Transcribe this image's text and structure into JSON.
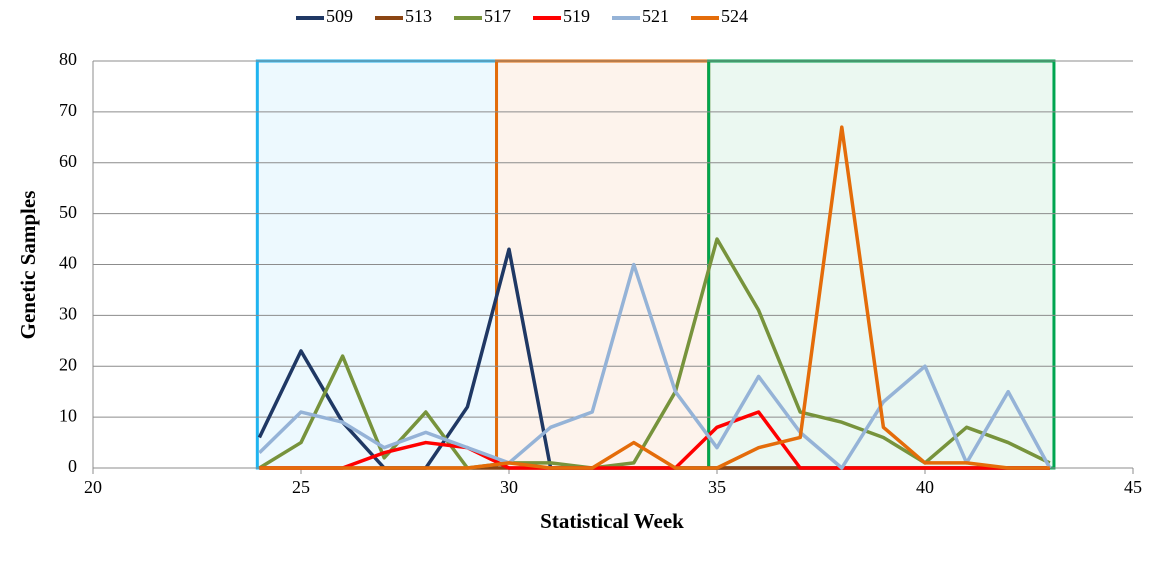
{
  "chart_data": {
    "type": "line",
    "x_label": "Statistical Week",
    "y_label": "Genetic Samples",
    "x": [
      24,
      25,
      26,
      27,
      28,
      29,
      30,
      31,
      32,
      33,
      34,
      35,
      36,
      37,
      38,
      39,
      40,
      41,
      42,
      43
    ],
    "series": [
      {
        "name": "509",
        "color": "#1f3864",
        "values": [
          6,
          23,
          9,
          0,
          0,
          12,
          43,
          0,
          0,
          0,
          0,
          0,
          0,
          0,
          0,
          0,
          0,
          0,
          0,
          0
        ]
      },
      {
        "name": "513",
        "color": "#8b4513",
        "values": [
          0,
          0,
          0,
          0,
          0,
          0,
          0,
          0,
          0,
          0,
          0,
          0,
          0,
          0,
          0,
          0,
          0,
          0,
          0,
          0
        ]
      },
      {
        "name": "517",
        "color": "#77933c",
        "values": [
          0,
          5,
          22,
          2,
          11,
          0,
          1,
          1,
          0,
          1,
          15,
          45,
          31,
          11,
          9,
          6,
          1,
          8,
          5,
          1
        ]
      },
      {
        "name": "519",
        "color": "#ff0000",
        "values": [
          0,
          0,
          0,
          3,
          5,
          4,
          0,
          0,
          0,
          0,
          0,
          8,
          11,
          0,
          0,
          0,
          0,
          0,
          0,
          0
        ]
      },
      {
        "name": "521",
        "color": "#95b3d7",
        "values": [
          3,
          11,
          9,
          4,
          7,
          4,
          1,
          8,
          11,
          40,
          15,
          4,
          18,
          7,
          0,
          13,
          20,
          1,
          15,
          0
        ]
      },
      {
        "name": "524",
        "color": "#e46c0a",
        "values": [
          0,
          0,
          0,
          0,
          0,
          0,
          1,
          0,
          0,
          5,
          0,
          0,
          4,
          6,
          67,
          8,
          1,
          1,
          0,
          0
        ]
      }
    ],
    "regions": [
      {
        "x0": 23.95,
        "x1": 29.7,
        "color": "#1fb4f0"
      },
      {
        "x0": 29.7,
        "x1": 34.8,
        "color": "#e46c0a"
      },
      {
        "x0": 34.8,
        "x1": 43.1,
        "color": "#00a550"
      }
    ],
    "xlim": [
      20,
      45
    ],
    "xticks": [
      20,
      25,
      30,
      35,
      40,
      45
    ],
    "ylim": [
      0,
      80
    ],
    "yticks": [
      0,
      10,
      20,
      30,
      40,
      50,
      60,
      70,
      80
    ],
    "grid": true,
    "legend": "top"
  }
}
